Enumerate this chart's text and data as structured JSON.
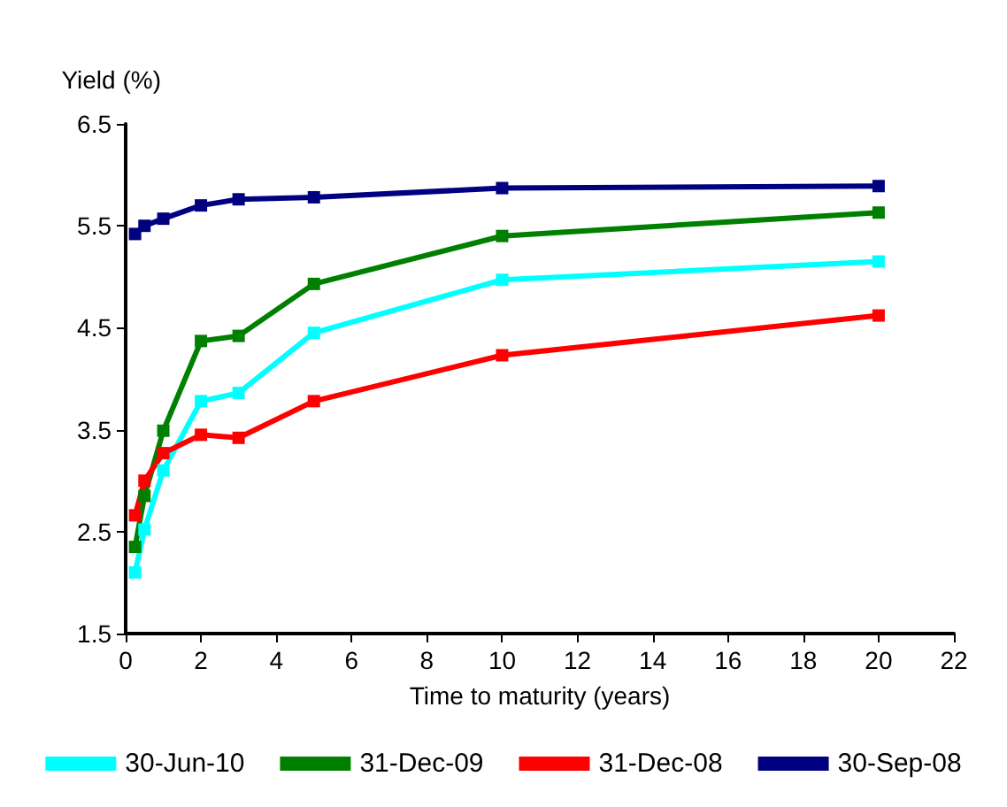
{
  "chart_data": {
    "type": "line",
    "ylabel": "Yield (%)",
    "xlabel": "Time to maturity (years)",
    "x": [
      0.25,
      0.5,
      1,
      2,
      3,
      5,
      10,
      20
    ],
    "series": [
      {
        "name": "30-Jun-10",
        "color": "#00ffff",
        "values": [
          2.1,
          2.52,
          3.1,
          3.78,
          3.86,
          4.45,
          4.97,
          5.15
        ]
      },
      {
        "name": "31-Dec-09",
        "color": "#008000",
        "values": [
          2.35,
          2.85,
          3.49,
          4.37,
          4.42,
          4.93,
          5.4,
          5.63
        ]
      },
      {
        "name": "31-Dec-08",
        "color": "#ff0000",
        "values": [
          2.66,
          3.0,
          3.27,
          3.45,
          3.42,
          3.78,
          4.23,
          4.62
        ]
      },
      {
        "name": "30-Sep-08",
        "color": "#000080",
        "values": [
          5.42,
          5.5,
          5.57,
          5.7,
          5.76,
          5.78,
          5.87,
          5.89
        ]
      }
    ],
    "xlim": [
      0,
      22
    ],
    "xticks": [
      0,
      2,
      4,
      6,
      8,
      10,
      12,
      14,
      16,
      18,
      20,
      22
    ],
    "ylim": [
      1.5,
      6.5
    ],
    "yticks": [
      1.5,
      2.5,
      3.5,
      4.5,
      5.5,
      6.5
    ],
    "grid": false,
    "legend": "bottom",
    "marker": "square",
    "line_style": "solid"
  }
}
